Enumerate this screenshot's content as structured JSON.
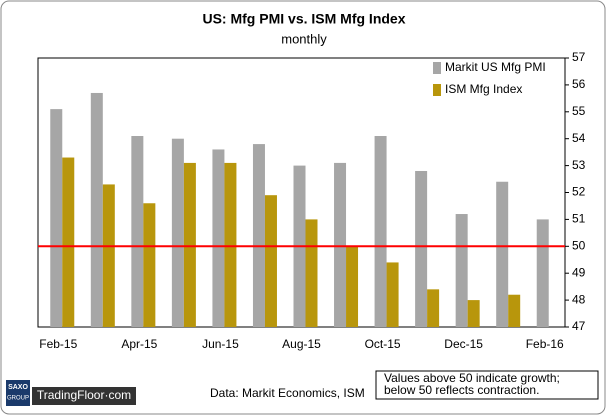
{
  "chart_data": {
    "type": "bar",
    "title": "US: Mfg PMI vs. ISM Mfg Index",
    "subtitle": "monthly",
    "categories": [
      "Feb-15",
      null,
      "Apr-15",
      null,
      "Jun-15",
      null,
      "Aug-15",
      null,
      "Oct-15",
      null,
      "Dec-15",
      null,
      "Feb-16"
    ],
    "series": [
      {
        "name": "Markit US Mfg PMI",
        "color": "#a6a6a6",
        "values": [
          55.1,
          55.7,
          54.1,
          54.0,
          53.6,
          53.8,
          53.0,
          53.1,
          54.1,
          52.8,
          51.2,
          52.4,
          51.0
        ]
      },
      {
        "name": "ISM Mfg Index",
        "color": "#b8960c",
        "values": [
          53.3,
          52.3,
          51.6,
          53.1,
          53.1,
          51.9,
          51.0,
          50.0,
          49.4,
          48.4,
          48.0,
          48.2,
          null
        ]
      }
    ],
    "ylim": [
      47,
      57
    ],
    "yticks": [
      47,
      48,
      49,
      50,
      51,
      52,
      53,
      54,
      55,
      56,
      57
    ],
    "grid": false,
    "legend": "top-right",
    "reference_line": {
      "value": 50,
      "color": "#ff0000"
    },
    "annotation": [
      "Values above 50 indicate growth;",
      "below 50 reflects contraction."
    ],
    "source": "Data: Markit Economics, ISM",
    "branding": {
      "brand": "SAXO",
      "group": "GROUP",
      "site": "TradingFloor·com"
    }
  }
}
